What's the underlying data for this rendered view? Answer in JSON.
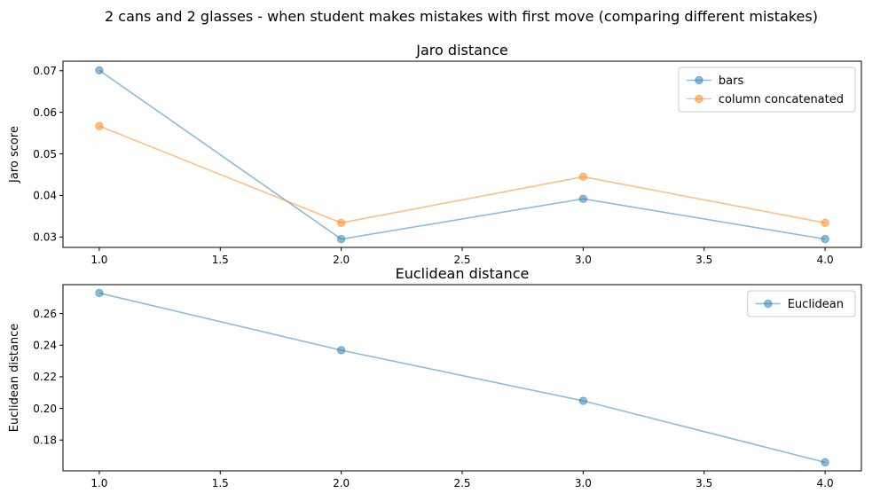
{
  "figure": {
    "suptitle": "2 cans and 2 glasses - when student makes mistakes with first move (comparing different mistakes)"
  },
  "chart_data": [
    {
      "type": "line",
      "title": "Jaro distance",
      "xlabel": "",
      "ylabel": "Jaro score",
      "x": [
        1.0,
        2.0,
        3.0,
        4.0
      ],
      "xlim": [
        0.85,
        4.15
      ],
      "ylim": [
        0.0275,
        0.0723
      ],
      "xticks": [
        1.0,
        1.5,
        2.0,
        2.5,
        3.0,
        3.5,
        4.0
      ],
      "xtick_labels": [
        "1.0",
        "1.5",
        "2.0",
        "2.5",
        "3.0",
        "3.5",
        "4.0"
      ],
      "yticks": [
        0.03,
        0.04,
        0.05,
        0.06,
        0.07
      ],
      "ytick_labels": [
        "0.03",
        "0.04",
        "0.05",
        "0.06",
        "0.07"
      ],
      "grid": false,
      "legend": "top-right",
      "series": [
        {
          "name": "bars",
          "values": [
            0.0701,
            0.0295,
            0.0392,
            0.0295
          ],
          "color": "#1f77b4",
          "marker": "circle"
        },
        {
          "name": "column concatenated",
          "values": [
            0.0567,
            0.0334,
            0.0445,
            0.0334
          ],
          "color": "#ff7f0e",
          "marker": "circle"
        }
      ]
    },
    {
      "type": "line",
      "title": "Euclidean distance",
      "xlabel": "",
      "ylabel": "Euclidean distance",
      "x": [
        1.0,
        2.0,
        3.0,
        4.0
      ],
      "xlim": [
        0.85,
        4.15
      ],
      "ylim": [
        0.1605,
        0.2783
      ],
      "xticks": [
        1.0,
        1.5,
        2.0,
        2.5,
        3.0,
        3.5,
        4.0
      ],
      "xtick_labels": [
        "1.0",
        "1.5",
        "2.0",
        "2.5",
        "3.0",
        "3.5",
        "4.0"
      ],
      "yticks": [
        0.18,
        0.2,
        0.22,
        0.24,
        0.26
      ],
      "ytick_labels": [
        "0.18",
        "0.20",
        "0.22",
        "0.24",
        "0.26"
      ],
      "grid": false,
      "legend": "top-right",
      "series": [
        {
          "name": "Euclidean",
          "values": [
            0.273,
            0.2368,
            0.2048,
            0.1659
          ],
          "color": "#1f77b4",
          "marker": "circle"
        }
      ]
    }
  ]
}
